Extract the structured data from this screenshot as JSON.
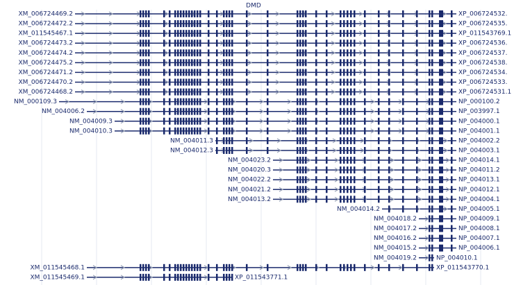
{
  "title": "DMD",
  "transcripts": [
    {
      "rna": "XM_006724469.2",
      "protein": "XP_006724532."
    },
    {
      "rna": "XM_006724472.2",
      "protein": "XP_006724535."
    },
    {
      "rna": "XM_011545467.1",
      "protein": "XP_011543769.1"
    },
    {
      "rna": "XM_006724473.2",
      "protein": "XP_006724536."
    },
    {
      "rna": "XM_006724474.2",
      "protein": "XP_006724537."
    },
    {
      "rna": "XM_006724475.2",
      "protein": "XP_006724538."
    },
    {
      "rna": "XM_006724471.2",
      "protein": "XP_006724534."
    },
    {
      "rna": "XM_006724470.2",
      "protein": "XP_006724533."
    },
    {
      "rna": "XM_006724468.2",
      "protein": "XP_006724531.1"
    },
    {
      "rna": "NM_000109.3",
      "protein": "NP_000100.2"
    },
    {
      "rna": "NM_004006.2",
      "protein": "NP_003997.1"
    },
    {
      "rna": "NM_004009.3",
      "protein": "NP_004000.1"
    },
    {
      "rna": "NM_004010.3",
      "protein": "NP_004001.1"
    },
    {
      "rna": "NM_004011.3",
      "protein": "NP_004002.2"
    },
    {
      "rna": "NM_004012.3",
      "protein": "NP_004003.1"
    },
    {
      "rna": "NM_004023.2",
      "protein": "NP_004014.1"
    },
    {
      "rna": "NM_004020.3",
      "protein": "NP_004011.2"
    },
    {
      "rna": "NM_004022.2",
      "protein": "NP_004013.1"
    },
    {
      "rna": "NM_004021.2",
      "protein": "NP_004012.1"
    },
    {
      "rna": "NM_004013.2",
      "protein": "NP_004004.1"
    },
    {
      "rna": "NM_004014.2",
      "protein": "NP_004005.1"
    },
    {
      "rna": "NM_004018.2",
      "protein": "NP_004009.1"
    },
    {
      "rna": "NM_004017.2",
      "protein": "NP_004008.1"
    },
    {
      "rna": "NM_004016.2",
      "protein": "NP_004007.1"
    },
    {
      "rna": "NM_004015.2",
      "protein": "NP_004006.1"
    },
    {
      "rna": "NM_004019.2",
      "protein": "NP_004010.1"
    },
    {
      "rna": "XM_011545468.1",
      "protein": "XP_011543770.1"
    },
    {
      "rna": "XM_011545469.1",
      "protein": "XP_011543771.1"
    }
  ]
}
